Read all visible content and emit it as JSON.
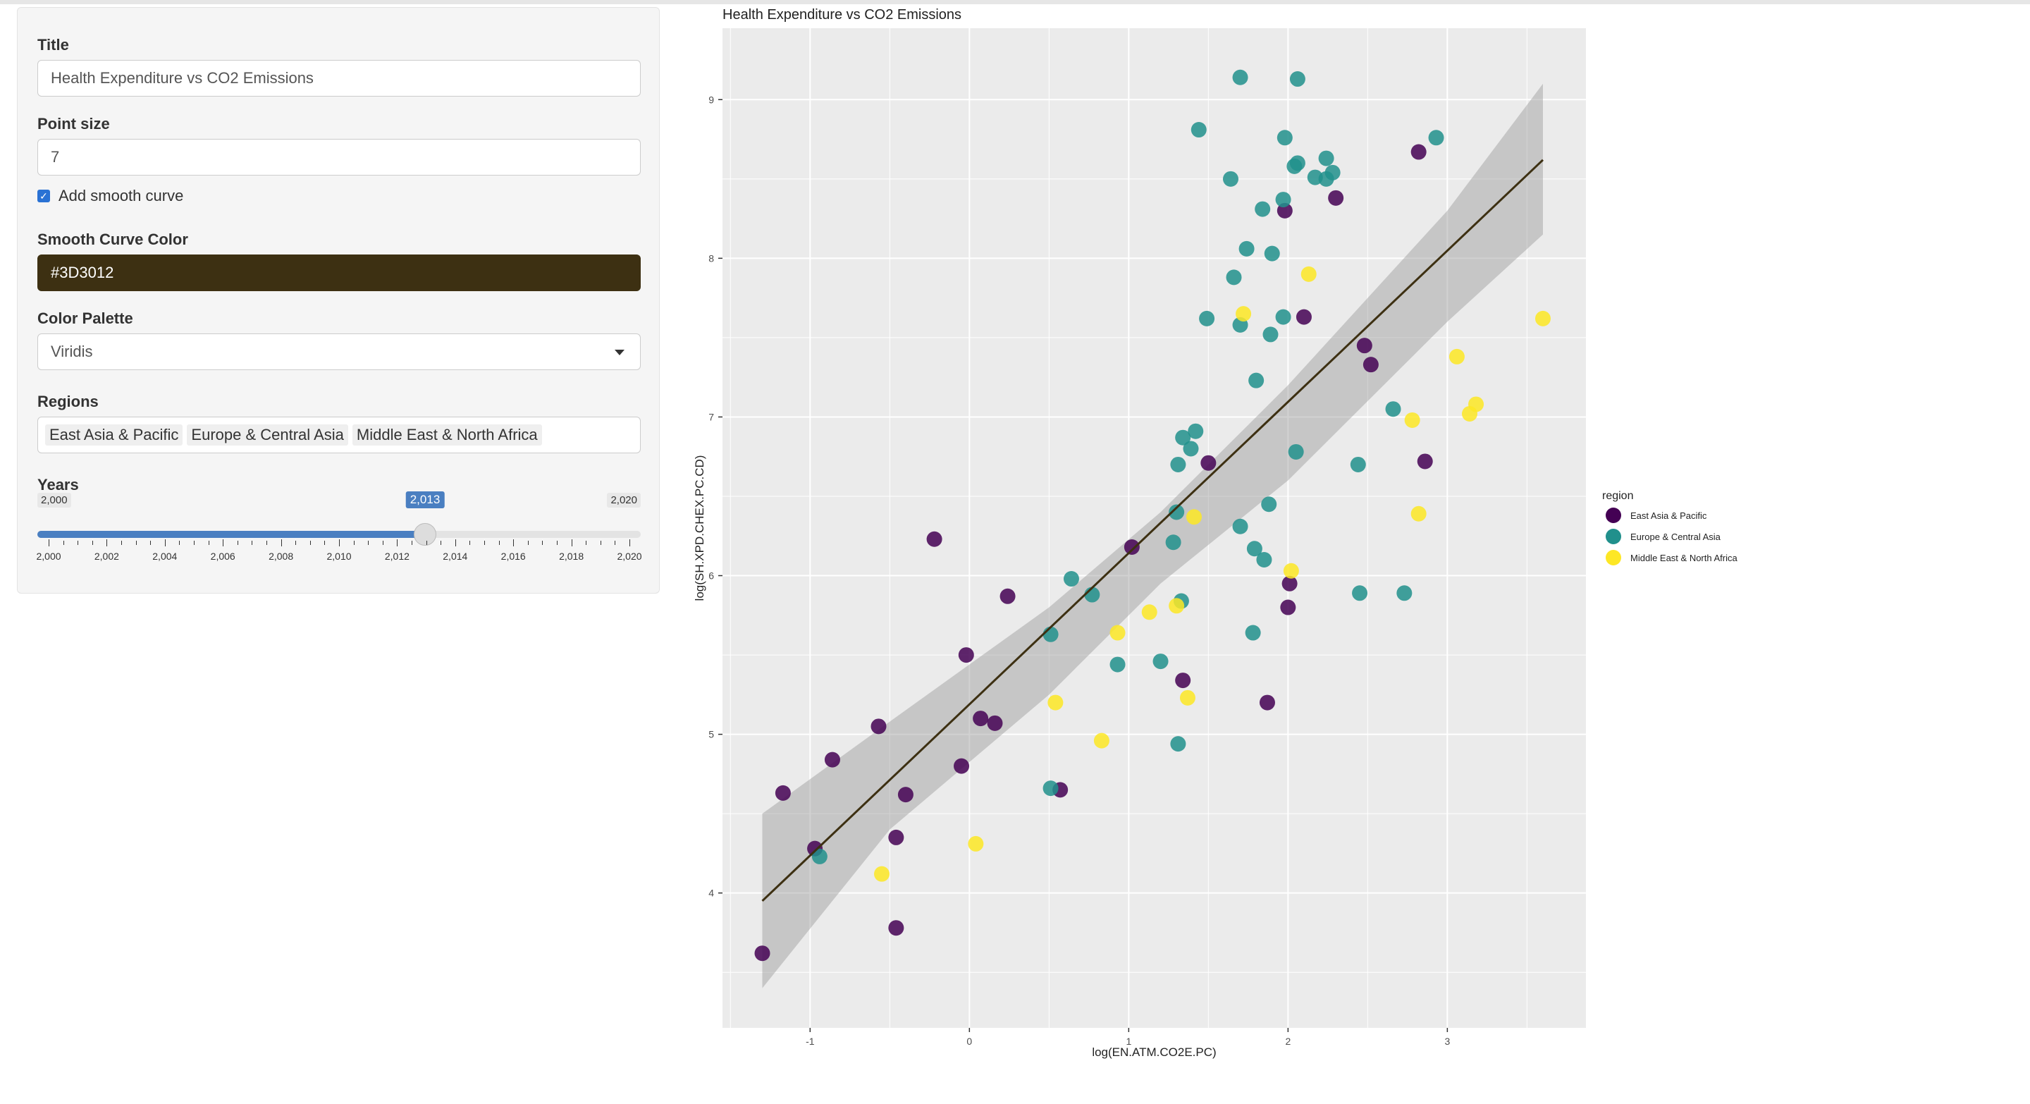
{
  "sidebar": {
    "title_label": "Title",
    "title_value": "Health Expenditure vs CO2 Emissions",
    "point_size_label": "Point size",
    "point_size_value": "7",
    "smooth_label": "Add smooth curve",
    "smooth_checked": true,
    "curve_color_label": "Smooth Curve Color",
    "curve_color_value": "#3D3012",
    "palette_label": "Color Palette",
    "palette_value": "Viridis",
    "regions_label": "Regions",
    "regions": [
      "East Asia & Pacific",
      "Europe & Central Asia",
      "Middle East & North Africa"
    ],
    "years_label": "Years",
    "years_min": "2,000",
    "years_max": "2,020",
    "years_value": "2,013",
    "years_ticks": [
      "2,000",
      "2,002",
      "2,004",
      "2,006",
      "2,008",
      "2,010",
      "2,012",
      "2,014",
      "2,016",
      "2,018",
      "2,020"
    ]
  },
  "chart_data": {
    "type": "scatter",
    "title": "Health Expenditure vs CO2 Emissions",
    "xlabel": "log(EN.ATM.CO2E.PC)",
    "ylabel": "log(SH.XPD.CHEX.PC.CD)",
    "xlim": [
      -1.55,
      3.87
    ],
    "ylim": [
      3.15,
      9.45
    ],
    "xticks": [
      -1,
      0,
      1,
      2,
      3
    ],
    "yticks": [
      4,
      5,
      6,
      7,
      8,
      9
    ],
    "background": "#EBEBEB",
    "grid": true,
    "legend_title": "region",
    "legend_position": "right",
    "smooth": {
      "color": "#3D3012",
      "line": [
        [
          -1.3,
          3.95
        ],
        [
          3.6,
          8.62
        ]
      ],
      "band_upper": [
        [
          -1.3,
          4.5
        ],
        [
          -0.5,
          5.08
        ],
        [
          0.5,
          5.8
        ],
        [
          1.2,
          6.4
        ],
        [
          2.0,
          7.2
        ],
        [
          3.0,
          8.3
        ],
        [
          3.6,
          9.1
        ]
      ],
      "band_lower": [
        [
          3.6,
          8.15
        ],
        [
          3.0,
          7.6
        ],
        [
          2.0,
          6.6
        ],
        [
          1.2,
          5.95
        ],
        [
          0.5,
          5.25
        ],
        [
          -0.5,
          4.4
        ],
        [
          -1.3,
          3.4
        ]
      ]
    },
    "series": [
      {
        "name": "East Asia & Pacific",
        "color": "#440154",
        "points": [
          [
            -1.3,
            3.62
          ],
          [
            -1.17,
            4.63
          ],
          [
            -0.97,
            4.28
          ],
          [
            -0.86,
            4.84
          ],
          [
            -0.57,
            5.05
          ],
          [
            -0.46,
            4.35
          ],
          [
            -0.46,
            3.78
          ],
          [
            -0.4,
            4.62
          ],
          [
            -0.22,
            6.23
          ],
          [
            -0.05,
            4.8
          ],
          [
            -0.02,
            5.5
          ],
          [
            0.07,
            5.1
          ],
          [
            0.16,
            5.07
          ],
          [
            0.24,
            5.87
          ],
          [
            0.57,
            4.65
          ],
          [
            1.02,
            6.18
          ],
          [
            1.34,
            5.34
          ],
          [
            1.5,
            6.71
          ],
          [
            1.87,
            5.2
          ],
          [
            1.98,
            8.3
          ],
          [
            2.0,
            5.8
          ],
          [
            2.01,
            5.95
          ],
          [
            2.1,
            7.63
          ],
          [
            2.3,
            8.38
          ],
          [
            2.48,
            7.45
          ],
          [
            2.52,
            7.33
          ],
          [
            2.82,
            8.67
          ],
          [
            2.86,
            6.72
          ]
        ]
      },
      {
        "name": "Europe & Central Asia",
        "color": "#21908C",
        "points": [
          [
            -0.94,
            4.23
          ],
          [
            0.51,
            4.66
          ],
          [
            0.51,
            5.63
          ],
          [
            0.64,
            5.98
          ],
          [
            0.77,
            5.88
          ],
          [
            0.93,
            5.44
          ],
          [
            1.2,
            5.46
          ],
          [
            1.28,
            6.21
          ],
          [
            1.3,
            6.4
          ],
          [
            1.31,
            4.94
          ],
          [
            1.31,
            6.7
          ],
          [
            1.33,
            5.84
          ],
          [
            1.34,
            6.87
          ],
          [
            1.39,
            6.8
          ],
          [
            1.42,
            6.91
          ],
          [
            1.44,
            8.81
          ],
          [
            1.49,
            7.62
          ],
          [
            1.64,
            8.5
          ],
          [
            1.66,
            7.88
          ],
          [
            1.7,
            6.31
          ],
          [
            1.7,
            7.58
          ],
          [
            1.7,
            9.14
          ],
          [
            1.74,
            8.06
          ],
          [
            1.78,
            5.64
          ],
          [
            1.79,
            6.17
          ],
          [
            1.8,
            7.23
          ],
          [
            1.84,
            8.31
          ],
          [
            1.85,
            6.1
          ],
          [
            1.88,
            6.45
          ],
          [
            1.89,
            7.52
          ],
          [
            1.9,
            8.03
          ],
          [
            1.97,
            8.37
          ],
          [
            1.97,
            7.63
          ],
          [
            1.98,
            8.76
          ],
          [
            2.04,
            8.58
          ],
          [
            2.05,
            6.78
          ],
          [
            2.06,
            8.6
          ],
          [
            2.06,
            9.13
          ],
          [
            2.17,
            8.51
          ],
          [
            2.24,
            8.5
          ],
          [
            2.24,
            8.63
          ],
          [
            2.28,
            8.54
          ],
          [
            2.44,
            6.7
          ],
          [
            2.45,
            5.89
          ],
          [
            2.66,
            7.05
          ],
          [
            2.73,
            5.89
          ],
          [
            2.93,
            8.76
          ]
        ]
      },
      {
        "name": "Middle East & North Africa",
        "color": "#FDE725",
        "points": [
          [
            -0.55,
            4.12
          ],
          [
            0.04,
            4.31
          ],
          [
            0.54,
            5.2
          ],
          [
            0.83,
            4.96
          ],
          [
            0.93,
            5.64
          ],
          [
            1.13,
            5.77
          ],
          [
            1.3,
            5.81
          ],
          [
            1.37,
            5.23
          ],
          [
            1.41,
            6.37
          ],
          [
            1.72,
            7.65
          ],
          [
            2.02,
            6.03
          ],
          [
            2.13,
            7.9
          ],
          [
            2.78,
            6.98
          ],
          [
            2.82,
            6.39
          ],
          [
            3.06,
            7.38
          ],
          [
            3.14,
            7.02
          ],
          [
            3.18,
            7.08
          ],
          [
            3.6,
            7.62
          ]
        ]
      }
    ]
  }
}
